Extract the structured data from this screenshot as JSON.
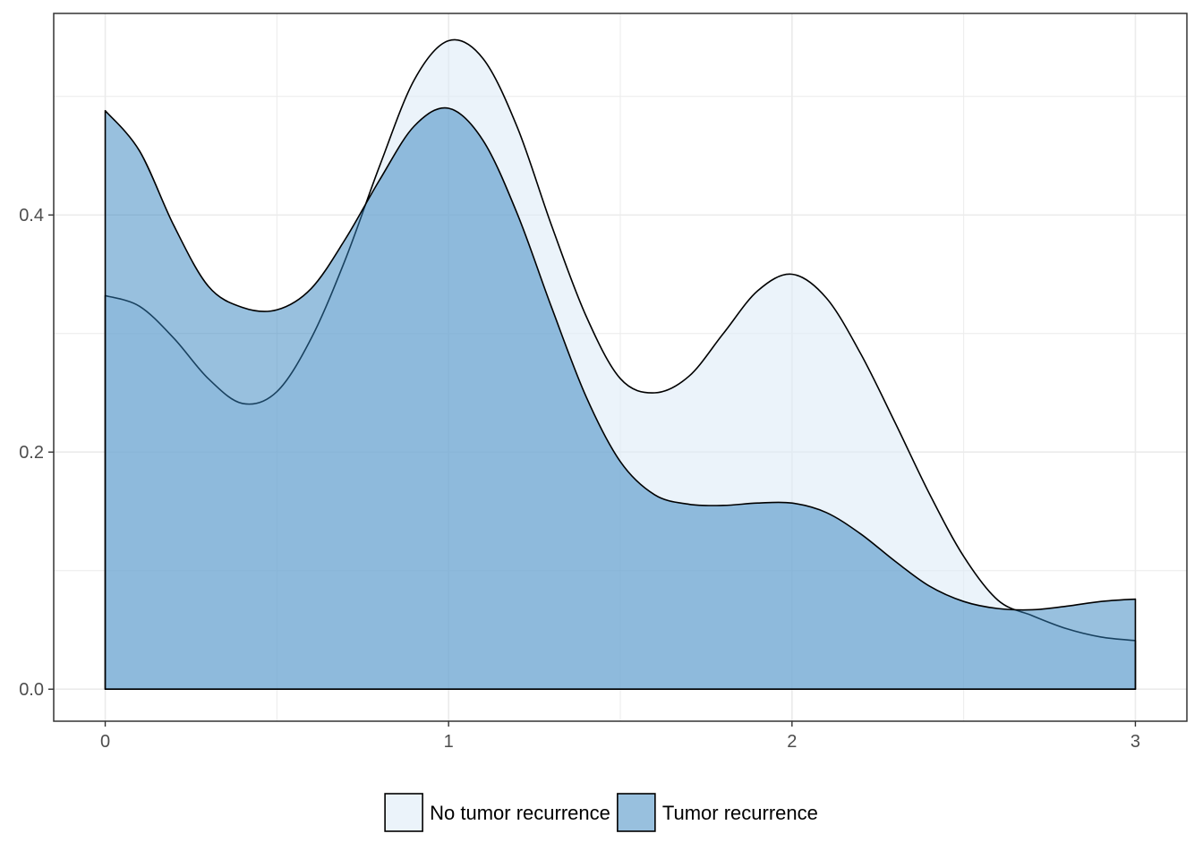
{
  "chart_data": {
    "type": "area",
    "title": "",
    "xlabel": "",
    "ylabel": "",
    "xlim": [
      -0.15,
      3.15
    ],
    "ylim": [
      -0.027,
      0.57
    ],
    "x_ticks": [
      0,
      1,
      2,
      3
    ],
    "x_tick_labels": [
      "0",
      "1",
      "2",
      "3"
    ],
    "y_ticks": [
      0.0,
      0.2,
      0.4
    ],
    "y_tick_labels": [
      "0.0",
      "0.2",
      "0.4"
    ],
    "grid": true,
    "legend_position": "bottom",
    "series": [
      {
        "name": "No tumor recurrence",
        "color": "#deebf7",
        "fill_opacity": 0.6,
        "points": [
          [
            0.0,
            0.332
          ],
          [
            0.1,
            0.323
          ],
          [
            0.2,
            0.296
          ],
          [
            0.3,
            0.262
          ],
          [
            0.4,
            0.241
          ],
          [
            0.5,
            0.251
          ],
          [
            0.6,
            0.296
          ],
          [
            0.7,
            0.363
          ],
          [
            0.8,
            0.442
          ],
          [
            0.9,
            0.514
          ],
          [
            1.0,
            0.547
          ],
          [
            1.1,
            0.532
          ],
          [
            1.2,
            0.474
          ],
          [
            1.3,
            0.391
          ],
          [
            1.4,
            0.315
          ],
          [
            1.5,
            0.262
          ],
          [
            1.6,
            0.25
          ],
          [
            1.7,
            0.264
          ],
          [
            1.8,
            0.3
          ],
          [
            1.9,
            0.336
          ],
          [
            2.0,
            0.35
          ],
          [
            2.1,
            0.33
          ],
          [
            2.2,
            0.283
          ],
          [
            2.3,
            0.225
          ],
          [
            2.4,
            0.165
          ],
          [
            2.5,
            0.112
          ],
          [
            2.6,
            0.075
          ],
          [
            2.7,
            0.062
          ],
          [
            2.8,
            0.051
          ],
          [
            2.9,
            0.044
          ],
          [
            3.0,
            0.041
          ]
        ]
      },
      {
        "name": "Tumor recurrence",
        "color": "#3182bd",
        "fill_opacity": 0.5,
        "points": [
          [
            0.0,
            0.488
          ],
          [
            0.1,
            0.454
          ],
          [
            0.2,
            0.391
          ],
          [
            0.3,
            0.34
          ],
          [
            0.4,
            0.322
          ],
          [
            0.5,
            0.32
          ],
          [
            0.6,
            0.338
          ],
          [
            0.7,
            0.38
          ],
          [
            0.8,
            0.43
          ],
          [
            0.9,
            0.475
          ],
          [
            1.0,
            0.49
          ],
          [
            1.1,
            0.463
          ],
          [
            1.2,
            0.401
          ],
          [
            1.3,
            0.322
          ],
          [
            1.4,
            0.247
          ],
          [
            1.5,
            0.192
          ],
          [
            1.6,
            0.164
          ],
          [
            1.7,
            0.156
          ],
          [
            1.8,
            0.155
          ],
          [
            1.9,
            0.157
          ],
          [
            2.0,
            0.157
          ],
          [
            2.1,
            0.149
          ],
          [
            2.2,
            0.131
          ],
          [
            2.3,
            0.108
          ],
          [
            2.4,
            0.087
          ],
          [
            2.5,
            0.074
          ],
          [
            2.6,
            0.068
          ],
          [
            2.7,
            0.067
          ],
          [
            2.8,
            0.07
          ],
          [
            2.9,
            0.074
          ],
          [
            3.0,
            0.076
          ]
        ]
      }
    ]
  }
}
